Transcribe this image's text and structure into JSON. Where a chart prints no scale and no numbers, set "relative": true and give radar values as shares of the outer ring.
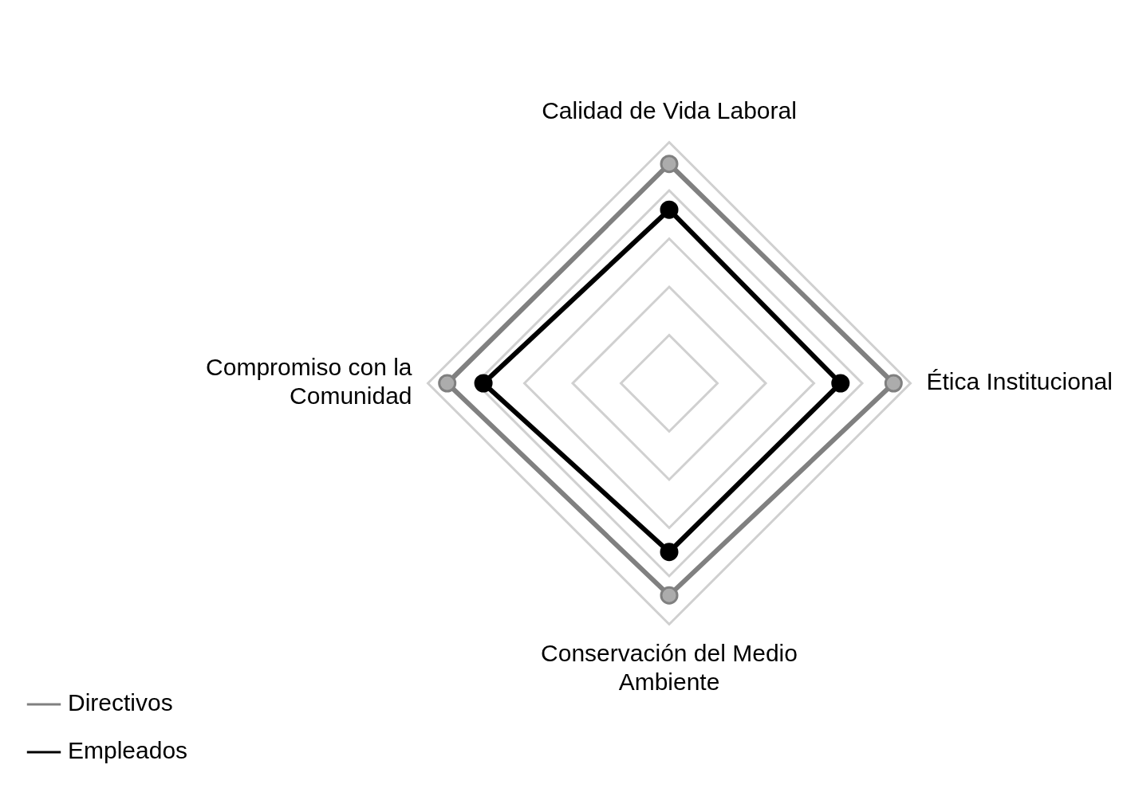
{
  "chart_data": {
    "type": "radar",
    "relative": true,
    "categories": [
      "Calidad de Vida Laboral",
      "Ética Institucional",
      "Conservación del Medio Ambiente",
      "Compromiso con la Comunidad"
    ],
    "series": [
      {
        "name": "Directivos",
        "color": "#808080",
        "values": [
          0.91,
          0.93,
          0.88,
          0.92
        ]
      },
      {
        "name": "Empleados",
        "color": "#000000",
        "values": [
          0.72,
          0.71,
          0.7,
          0.77
        ]
      }
    ],
    "marker": "circle",
    "legend": "bottom left",
    "grid": true
  }
}
